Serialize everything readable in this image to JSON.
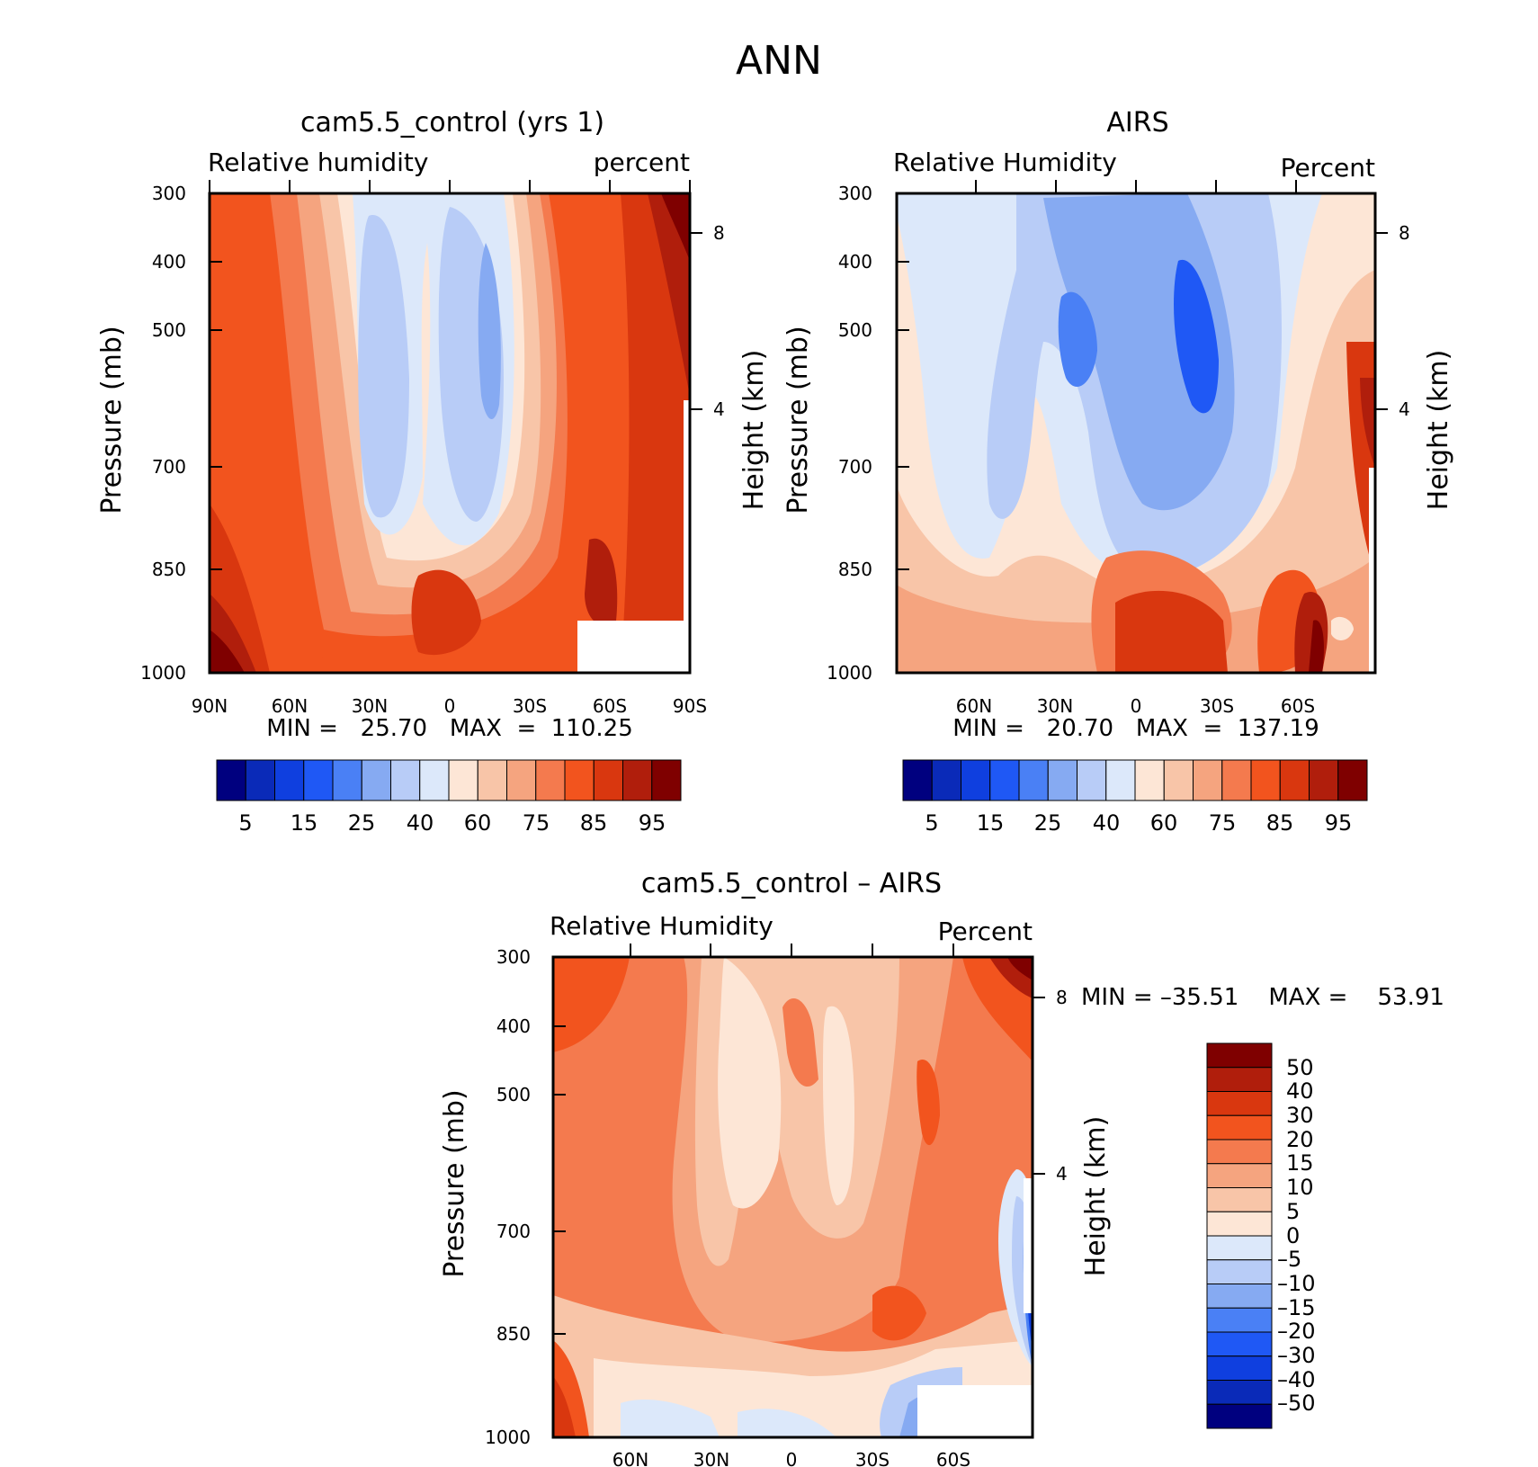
{
  "page_title": "ANN",
  "chart_data": [
    {
      "type": "heatmap",
      "title": "cam5.5_control (yrs 1)",
      "subtitle_left": "Relative humidity",
      "subtitle_right": "percent",
      "ylabel": "Pressure (mb)",
      "ylabel_right": "Height (km)",
      "x_ticks": [
        "90N",
        "60N",
        "30N",
        "0",
        "30S",
        "60S",
        "90S"
      ],
      "y_ticks": [
        "300",
        "400",
        "500",
        "700",
        "850",
        "1000"
      ],
      "y_right_ticks": [
        "8",
        "4"
      ],
      "min_max": "MIN =   25.70   MAX  =  110.25",
      "colorbar_labels": [
        "5",
        "15",
        "25",
        "40",
        "60",
        "75",
        "85",
        "95"
      ],
      "ylim": [
        1000,
        300
      ],
      "colormap": "blue-white-red"
    },
    {
      "type": "heatmap",
      "title": "AIRS",
      "subtitle_left": "Relative Humidity",
      "subtitle_right": "Percent",
      "ylabel": "Pressure (mb)",
      "ylabel_right": "Height (km)",
      "x_ticks": [
        "60N",
        "30N",
        "0",
        "30S",
        "60S"
      ],
      "y_ticks": [
        "300",
        "400",
        "500",
        "700",
        "850",
        "1000"
      ],
      "y_right_ticks": [
        "8",
        "4"
      ],
      "min_max": "MIN =   20.70   MAX  =  137.19",
      "colorbar_labels": [
        "5",
        "15",
        "25",
        "40",
        "60",
        "75",
        "85",
        "95"
      ],
      "ylim": [
        1000,
        300
      ],
      "colormap": "blue-white-red"
    },
    {
      "type": "heatmap",
      "title": "cam5.5_control – AIRS",
      "subtitle_left": "Relative Humidity",
      "subtitle_right": "Percent",
      "ylabel": "Pressure (mb)",
      "ylabel_right": "Height (km)",
      "x_ticks": [
        "60N",
        "30N",
        "0",
        "30S",
        "60S"
      ],
      "y_ticks": [
        "300",
        "400",
        "500",
        "700",
        "850",
        "1000"
      ],
      "y_right_ticks": [
        "8",
        "4"
      ],
      "min_max": "MIN = –35.51    MAX =    53.91",
      "colorbar_labels": [
        "50",
        "40",
        "30",
        "20",
        "15",
        "10",
        "5",
        "0",
        "–5",
        "–10",
        "–15",
        "–20",
        "–30",
        "–40",
        "–50"
      ],
      "ylim": [
        1000,
        300
      ],
      "colormap": "blue-white-red"
    }
  ],
  "colors": {
    "scale": [
      "#00007f",
      "#0a2ab8",
      "#0f3fdf",
      "#1f58f5",
      "#4a80f5",
      "#86aaf2",
      "#b8ccf7",
      "#dce8fa",
      "#fde6d6",
      "#f8c5a8",
      "#f5a47f",
      "#f47a4e",
      "#f2541e",
      "#d9370f",
      "#b01e0c",
      "#7f0000"
    ]
  }
}
